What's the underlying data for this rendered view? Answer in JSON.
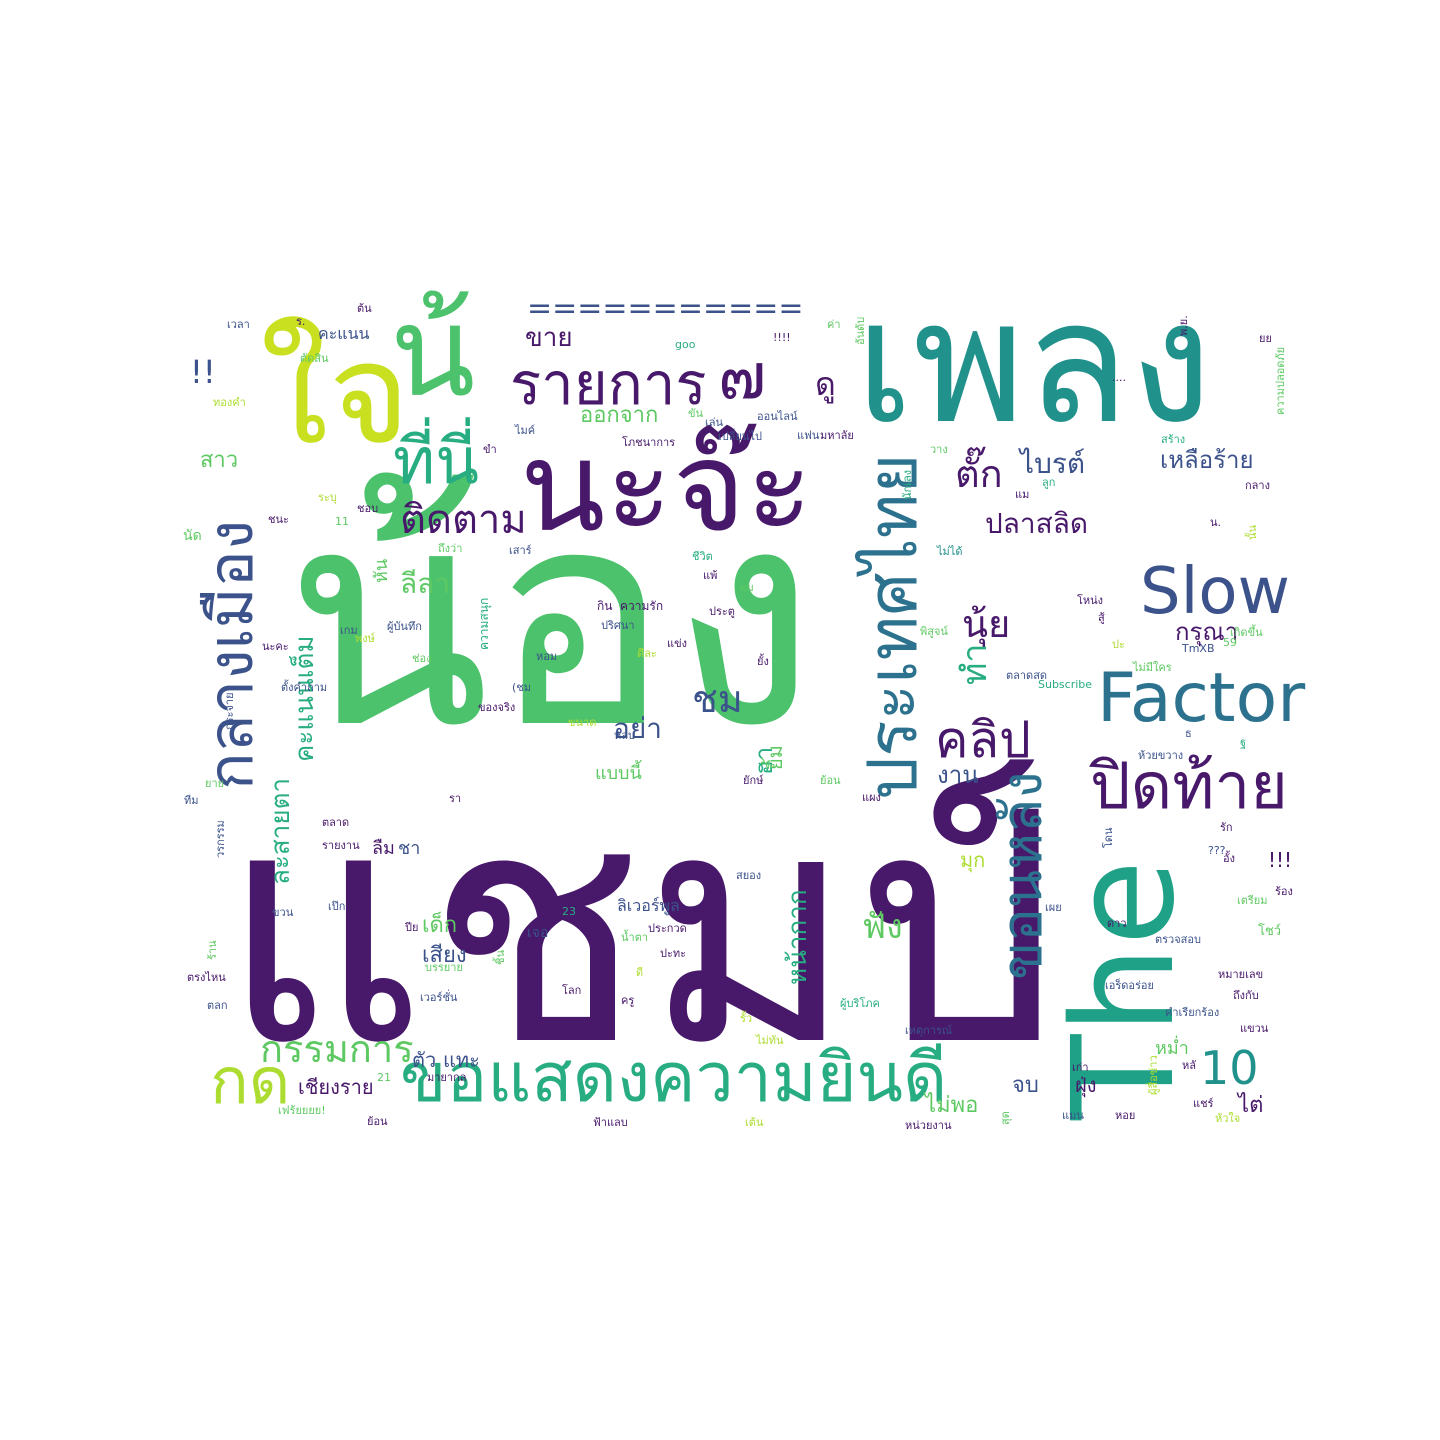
{
  "palette": {
    "dark_purple": "#48186a",
    "indigo": "#3b528b",
    "blue": "#2c728e",
    "teal": "#21918c",
    "green_teal": "#27ad81",
    "green": "#5ec962",
    "lime": "#addc30",
    "yellow": "#c8d926"
  },
  "words": [
    {
      "text": "แชมป์",
      "color": "#48186a"
    },
    {
      "text": "น้อง",
      "color": "#4cc26c"
    },
    {
      "text": "เพลง",
      "color": "#21918c"
    },
    {
      "text": "ใจ",
      "color": "#c8e020"
    },
    {
      "text": "น้",
      "color": "#4cc26c"
    },
    {
      "text": "นะจ๊ะ",
      "color": "#48186a"
    },
    {
      "text": "The",
      "color": "#1fa187"
    },
    {
      "text": "ขอแสดงความยินดี",
      "color": "#27ad81"
    },
    {
      "text": "กลางเมือง",
      "color": "#3b528b"
    },
    {
      "text": "ประเทศไทย",
      "color": "#2c728e"
    },
    {
      "text": "Factor",
      "color": "#2c728e"
    },
    {
      "text": "Slow",
      "color": "#3b528b"
    },
    {
      "text": "ปิดท้าย",
      "color": "#48186a"
    },
    {
      "text": "รายการ",
      "color": "#48186a"
    },
    {
      "text": "ที่นี่",
      "color": "#27ad81"
    },
    {
      "text": "ติดตาม",
      "color": "#48186a"
    },
    {
      "text": "๗",
      "color": "#48186a"
    },
    {
      "text": "ขอนหลัง",
      "color": "#2c728e"
    },
    {
      "text": "ชม",
      "color": "#3b528b"
    }
  ],
  "small_words": [
    {
      "text": "===========",
      "color": "#3b528b"
    },
    {
      "text": "คลิป",
      "color": "#48186a"
    },
    {
      "text": "กรรมการ",
      "color": "#5ec962"
    },
    {
      "text": "10",
      "color": "#21918c"
    },
    {
      "text": "กด",
      "color": "#addc30"
    },
    {
      "text": "นุ้ย",
      "color": "#48186a"
    },
    {
      "text": "ทำ",
      "color": "#27ad81"
    },
    {
      "text": "ตั๊ก",
      "color": "#48186a"
    },
    {
      "text": "ไบรต์",
      "color": "#3b528b"
    },
    {
      "text": "ดู",
      "color": "#48186a"
    },
    {
      "text": "ขาย",
      "color": "#48186a"
    },
    {
      "text": "ออกจาก",
      "color": "#5ec962"
    },
    {
      "text": "ปลาสลิด",
      "color": "#48186a"
    },
    {
      "text": "เหลือร้าย",
      "color": "#3b528b"
    },
    {
      "text": "กรุณา",
      "color": "#48186a"
    },
    {
      "text": "งาน",
      "color": "#3b528b"
    },
    {
      "text": "อย่า",
      "color": "#3b528b"
    },
    {
      "text": "ลีลา",
      "color": "#5ec962"
    },
    {
      "text": "คะแนนเต็ม",
      "color": "#27ad81"
    },
    {
      "text": "ละสายตา",
      "color": "#27ad81"
    },
    {
      "text": "สาว",
      "color": "#5ec962"
    },
    {
      "text": "คะแนน",
      "color": "#3b528b"
    },
    {
      "text": "!!",
      "color": "#3b528b"
    },
    {
      "text": "ฟัง",
      "color": "#5ec962"
    },
    {
      "text": "หน้ากาก",
      "color": "#27ad81"
    },
    {
      "text": "เด็ก",
      "color": "#5ec962"
    },
    {
      "text": "เสียง",
      "color": "#3b528b"
    },
    {
      "text": "ฮา",
      "color": "#27ad81"
    },
    {
      "text": "ยิ้ม",
      "color": "#5ec962"
    },
    {
      "text": "แบบนี้",
      "color": "#5ec962"
    },
    {
      "text": "ลิเวอร์พูล",
      "color": "#3b528b"
    },
    {
      "text": "ไม่พอ",
      "color": "#5ec962"
    },
    {
      "text": "จบ",
      "color": "#3b528b"
    },
    {
      "text": "ฝุ่ง",
      "color": "#48186a"
    },
    {
      "text": "ไต่",
      "color": "#48186a"
    },
    {
      "text": "หม่ำ",
      "color": "#5ec962"
    },
    {
      "text": "เชียงราย",
      "color": "#48186a"
    },
    {
      "text": "แทะ",
      "color": "#3b528b"
    },
    {
      "text": "ตัว",
      "color": "#3b528b"
    },
    {
      "text": "มุก",
      "color": "#addc30"
    },
    {
      "text": "!!!",
      "color": "#48186a"
    },
    {
      "text": "ลืม",
      "color": "#48186a"
    },
    {
      "text": "ชา",
      "color": "#3b528b"
    },
    {
      "text": "หัน",
      "color": "#5ec962"
    },
    {
      "text": "เจอ",
      "color": "#3b528b"
    },
    {
      "text": "ดีละ",
      "color": "#addc30"
    },
    {
      "text": "ความรัก",
      "color": "#48186a"
    },
    {
      "text": "กิน",
      "color": "#48186a"
    },
    {
      "text": "ความสนุก",
      "color": "#27ad81"
    },
    {
      "text": "ปริศนา",
      "color": "#3b528b"
    },
    {
      "text": "แข่ง",
      "color": "#48186a"
    },
    {
      "text": "ยั้ง",
      "color": "#48186a"
    },
    {
      "text": "หอม",
      "color": "#3b528b"
    },
    {
      "text": "ประตู",
      "color": "#48186a"
    },
    {
      "text": "ขนาด",
      "color": "#addc30"
    },
    {
      "text": "หลบ",
      "color": "#3b528b"
    },
    {
      "text": "ของจริง",
      "color": "#48186a"
    },
    {
      "text": "(ชม",
      "color": "#3b528b"
    },
    {
      "text": "แพ้",
      "color": "#48186a"
    },
    {
      "text": "ผม",
      "color": "#5ec962"
    },
    {
      "text": "ชีวิต",
      "color": "#27ad81"
    },
    {
      "text": "เกม",
      "color": "#3b528b"
    },
    {
      "text": "ผู้บันทึก",
      "color": "#3b528b"
    },
    {
      "text": "พงษ์",
      "color": "#addc30"
    },
    {
      "text": "ช่อง",
      "color": "#5ec962"
    },
    {
      "text": "นะคะ",
      "color": "#48186a"
    },
    {
      "text": "ตั้งคำถาม",
      "color": "#3b528b"
    },
    {
      "text": "กระจาย",
      "color": "#3b528b"
    },
    {
      "text": "นัด",
      "color": "#5ec962"
    },
    {
      "text": "ชนะ",
      "color": "#48186a"
    },
    {
      "text": "ระบุ",
      "color": "#addc30"
    },
    {
      "text": "ชอบ",
      "color": "#48186a"
    },
    {
      "text": "11",
      "color": "#5ec962"
    },
    {
      "text": "ถึงว่า",
      "color": "#5ec962"
    },
    {
      "text": "เสาร์",
      "color": "#3b528b"
    },
    {
      "text": "ไมค์",
      "color": "#3b528b"
    },
    {
      "text": "โภชนาการ",
      "color": "#48186a"
    },
    {
      "text": "ขำ",
      "color": "#48186a"
    },
    {
      "text": "ขัน",
      "color": "#5ec962"
    },
    {
      "text": "เล่น",
      "color": "#3b528b"
    },
    {
      "text": "เปลี่ยนไป",
      "color": "#3b528b"
    },
    {
      "text": "ออนไลน์",
      "color": "#3b528b"
    },
    {
      "text": "แฟน",
      "color": "#3b528b"
    },
    {
      "text": "มหาลัย",
      "color": "#48186a"
    },
    {
      "text": "นักเลง",
      "color": "#27ad81"
    },
    {
      "text": "วาง",
      "color": "#5ec962"
    },
    {
      "text": "ลูก",
      "color": "#27ad81"
    },
    {
      "text": "แม",
      "color": "#48186a"
    },
    {
      "text": "ไม่ได้",
      "color": "#21918c"
    },
    {
      "text": "สู้",
      "color": "#48186a"
    },
    {
      "text": "โหน่ง",
      "color": "#48186a"
    },
    {
      "text": "พิสูจน์",
      "color": "#5ec962"
    },
    {
      "text": "ปะ",
      "color": "#addc30"
    },
    {
      "text": "เกิดขึ้น",
      "color": "#5ec962"
    },
    {
      "text": "ไม่มีใคร",
      "color": "#5ec962"
    },
    {
      "text": "TmXB",
      "color": "#3b528b"
    },
    {
      "text": "59",
      "color": "#5ec962"
    },
    {
      "text": "ตลาดสด",
      "color": "#3b528b"
    },
    {
      "text": "Subscribe",
      "color": "#27ad81"
    },
    {
      "text": "ธ",
      "color": "#3b528b"
    },
    {
      "text": "ยักษ์",
      "color": "#48186a"
    },
    {
      "text": "ย้อน",
      "color": "#5ec962"
    },
    {
      "text": "แผง",
      "color": "#48186a"
    },
    {
      "text": "ห้วยขวาง",
      "color": "#3b528b"
    },
    {
      "text": "ฐ",
      "color": "#27ad81"
    },
    {
      "text": "โดน",
      "color": "#3b528b"
    },
    {
      "text": "รัก",
      "color": "#48186a"
    },
    {
      "text": "???",
      "color": "#3b528b"
    },
    {
      "text": "อั้ง",
      "color": "#48186a"
    },
    {
      "text": "ร้อง",
      "color": "#48186a"
    },
    {
      "text": "เตรียม",
      "color": "#5ec962"
    },
    {
      "text": "สยอง",
      "color": "#3b528b"
    },
    {
      "text": "ดาว",
      "color": "#48186a"
    },
    {
      "text": "เผย",
      "color": "#3b528b"
    },
    {
      "text": "ตรวจสอบ",
      "color": "#3b528b"
    },
    {
      "text": "โชว์",
      "color": "#5ec962"
    },
    {
      "text": "หมายเลข",
      "color": "#48186a"
    },
    {
      "text": "เอร็ดอร่อย",
      "color": "#3b528b"
    },
    {
      "text": "ถึงกับ",
      "color": "#48186a"
    },
    {
      "text": "คำเรียกร้อง",
      "color": "#3b528b"
    },
    {
      "text": "แขวน",
      "color": "#48186a"
    },
    {
      "text": "ผู้บริโภค",
      "color": "#27ad81"
    },
    {
      "text": "ไม่ทัน",
      "color": "#addc30"
    },
    {
      "text": "เหตุการณ์",
      "color": "#3b528b"
    },
    {
      "text": "เก่า",
      "color": "#48186a"
    },
    {
      "text": "หลั",
      "color": "#48186a"
    },
    {
      "text": "ผู้สื่อข่าว",
      "color": "#addc30"
    },
    {
      "text": "แชร์",
      "color": "#48186a"
    },
    {
      "text": "หัวใจ",
      "color": "#addc30"
    },
    {
      "text": "สุด",
      "color": "#5ec962"
    },
    {
      "text": "แมน",
      "color": "#3b528b"
    },
    {
      "text": "หอย",
      "color": "#48186a"
    },
    {
      "text": "หน่วยงาน",
      "color": "#48186a"
    },
    {
      "text": "เต้น",
      "color": "#addc30"
    },
    {
      "text": "ฟ้าแลบ",
      "color": "#48186a"
    },
    {
      "text": "ย้อน",
      "color": "#48186a"
    },
    {
      "text": "เฟร้ยยยย!",
      "color": "#5ec962"
    },
    {
      "text": "มายากล",
      "color": "#48186a"
    },
    {
      "text": "21",
      "color": "#5ec962"
    },
    {
      "text": "เวอร์ชั่น",
      "color": "#3b528b"
    },
    {
      "text": "บรรยาย",
      "color": "#5ec962"
    },
    {
      "text": "ครู",
      "color": "#48186a"
    },
    {
      "text": "โลก",
      "color": "#48186a"
    },
    {
      "text": "ปะทะ",
      "color": "#48186a"
    },
    {
      "text": "น้ำตา",
      "color": "#5ec962"
    },
    {
      "text": "ดี",
      "color": "#addc30"
    },
    {
      "text": "ประกวด",
      "color": "#48186a"
    },
    {
      "text": "รั้ว",
      "color": "#addc30"
    },
    {
      "text": "23",
      "color": "#27ad81"
    },
    {
      "text": "ปีย",
      "color": "#48186a"
    },
    {
      "text": "ตรงไหน",
      "color": "#48186a"
    },
    {
      "text": "ตลก",
      "color": "#3b528b"
    },
    {
      "text": "ขวน",
      "color": "#3b528b"
    },
    {
      "text": "เป๊ก",
      "color": "#3b528b"
    },
    {
      "text": "รายงาน",
      "color": "#48186a"
    },
    {
      "text": "ตลาด",
      "color": "#48186a"
    },
    {
      "text": "ร้าน",
      "color": "#5ec962"
    },
    {
      "text": "ทีม",
      "color": "#3b528b"
    },
    {
      "text": "ยาย",
      "color": "#5ec962"
    },
    {
      "text": "วรกรรม",
      "color": "#3b528b"
    },
    {
      "text": "รา",
      "color": "#48186a"
    },
    {
      "text": "เวลา",
      "color": "#3b528b"
    },
    {
      "text": "ร.",
      "color": "#48186a"
    },
    {
      "text": "ต้น",
      "color": "#48186a"
    },
    {
      "text": "ตัดสิน",
      "color": "#5ec962"
    },
    {
      "text": "ทองคำ",
      "color": "#addc30"
    },
    {
      "text": "goo",
      "color": "#27ad81"
    },
    {
      "text": "!!!!",
      "color": "#48186a"
    },
    {
      "text": "ค่า",
      "color": "#5ec962"
    },
    {
      "text": "อันดับ",
      "color": "#5ec962"
    },
    {
      "text": "....",
      "color": "#48186a"
    },
    {
      "text": "พ.ย.",
      "color": "#48186a"
    },
    {
      "text": "ยย",
      "color": "#48186a"
    },
    {
      "text": "ความปลอดภัย",
      "color": "#5ec962"
    },
    {
      "text": "สร้าง",
      "color": "#27ad81"
    },
    {
      "text": "กลาง",
      "color": "#48186a"
    },
    {
      "text": "น.",
      "color": "#48186a"
    },
    {
      "text": "นั้น",
      "color": "#addc30"
    },
    {
      "text": "ชิ้น",
      "color": "#5ec962"
    }
  ]
}
